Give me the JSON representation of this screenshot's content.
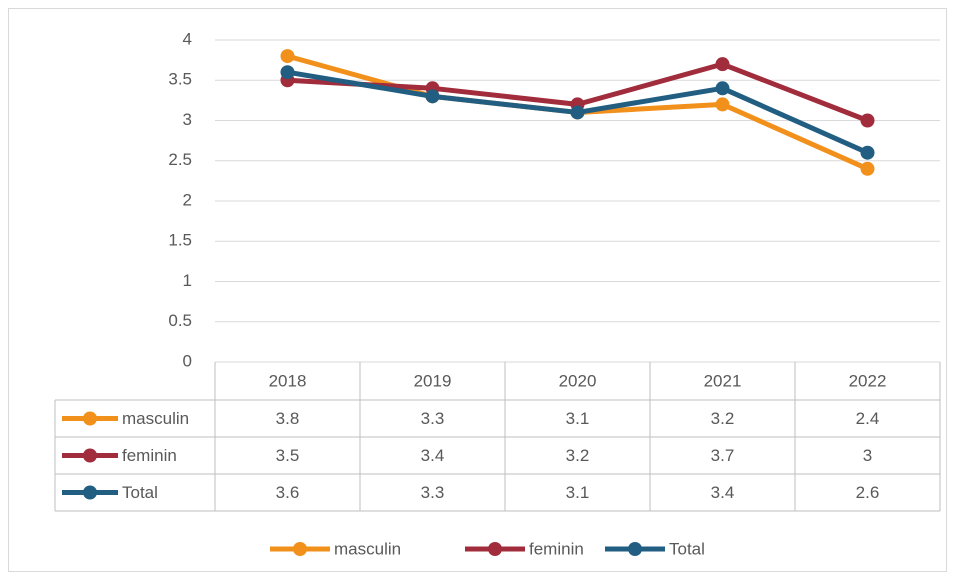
{
  "chart_data": {
    "type": "line",
    "categories": [
      "2018",
      "2019",
      "2020",
      "2021",
      "2022"
    ],
    "series": [
      {
        "name": "masculin",
        "color": "#f2901c",
        "values": [
          3.8,
          3.3,
          3.1,
          3.2,
          2.4
        ]
      },
      {
        "name": "feminin",
        "color": "#a02c3c",
        "values": [
          3.5,
          3.4,
          3.2,
          3.7,
          3
        ]
      },
      {
        "name": "Total",
        "color": "#215e82",
        "values": [
          3.6,
          3.3,
          3.1,
          3.4,
          2.6
        ]
      }
    ],
    "ylim": [
      0,
      4
    ],
    "yticks": [
      0,
      0.5,
      1,
      1.5,
      2,
      2.5,
      3,
      3.5,
      4
    ],
    "grid": true,
    "legend": "bottom",
    "data_table": true
  }
}
